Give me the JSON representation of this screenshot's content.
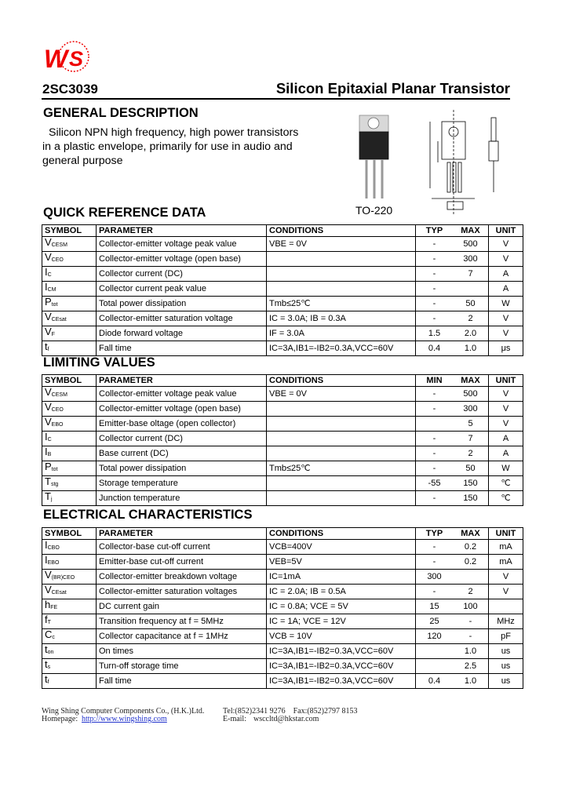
{
  "header": {
    "logo_text": "WS",
    "part_number": "2SC3039",
    "title": "Silicon Epitaxial Planar Transistor"
  },
  "general": {
    "heading": "GENERAL DESCRIPTION",
    "lines": [
      "Silicon NPN high frequency, high power transistors",
      "in a plastic envelope, primarily for use in audio and",
      "general purpose"
    ]
  },
  "package": {
    "label": "TO-220"
  },
  "colors": {
    "logo": "#ee0000"
  },
  "quick_ref": {
    "heading": "QUICK REFERENCE DATA",
    "columns": [
      "SYMBOL",
      "PARAMETER",
      "CONDITIONS",
      "TYP",
      "MAX",
      "UNIT"
    ],
    "rows": [
      [
        "V",
        "CESM",
        "Collector-emitter voltage peak value",
        "VBE = 0V",
        "-",
        "500",
        "V"
      ],
      [
        "V",
        "CEO",
        "Collector-emitter voltage (open base)",
        "",
        "-",
        "300",
        "V"
      ],
      [
        "I",
        "C",
        "Collector current (DC)",
        "",
        "-",
        "7",
        "A"
      ],
      [
        "I",
        "CM",
        "Collector current peak value",
        "",
        "-",
        "",
        "A"
      ],
      [
        "P",
        "tot",
        "Total power dissipation",
        "Tmb≤25℃",
        "-",
        "50",
        "W"
      ],
      [
        "V",
        "CEsat",
        "Collector-emitter saturation voltage",
        "IC = 3.0A; IB = 0.3A",
        "-",
        "2",
        "V"
      ],
      [
        "V",
        "F",
        "Diode forward voltage",
        "IF = 3.0A",
        "1.5",
        "2.0",
        "V"
      ],
      [
        "t",
        "f",
        "Fall time",
        "IC=3A,IB1=-IB2=0.3A,VCC=60V",
        "0.4",
        "1.0",
        "μs"
      ]
    ]
  },
  "limiting": {
    "heading": "LIMITING VALUES",
    "columns": [
      "SYMBOL",
      "PARAMETER",
      "CONDITIONS",
      "MIN",
      "MAX",
      "UNIT"
    ],
    "rows": [
      [
        "V",
        "CESM",
        "Collector-emitter voltage peak value",
        "VBE = 0V",
        "-",
        "500",
        "V"
      ],
      [
        "V",
        "CEO",
        "Collector-emitter voltage (open base)",
        "",
        "-",
        "300",
        "V"
      ],
      [
        "V",
        "EBO",
        "Emitter-base oltage (open collector)",
        "",
        "",
        "5",
        "V"
      ],
      [
        "I",
        "C",
        "Collector current (DC)",
        "",
        "-",
        "7",
        "A"
      ],
      [
        "I",
        "B",
        "Base current (DC)",
        "",
        "-",
        "2",
        "A"
      ],
      [
        "P",
        "tot",
        "Total power dissipation",
        "Tmb≤25℃",
        "-",
        "50",
        "W"
      ],
      [
        "T",
        "stg",
        "Storage temperature",
        "",
        "-55",
        "150",
        "℃"
      ],
      [
        "T",
        "j",
        "Junction temperature",
        "",
        "-",
        "150",
        "℃"
      ]
    ]
  },
  "electrical": {
    "heading": "ELECTRICAL CHARACTERISTICS",
    "columns": [
      "SYMBOL",
      "PARAMETER",
      "CONDITIONS",
      "TYP",
      "MAX",
      "UNIT"
    ],
    "rows": [
      [
        "I",
        "CBO",
        "Collector-base cut-off current",
        "VCB=400V",
        "-",
        "0.2",
        "mA"
      ],
      [
        "I",
        "EBO",
        "Emitter-base cut-off current",
        "VEB=5V",
        "-",
        "0.2",
        "mA"
      ],
      [
        "V",
        "(BR)CEO",
        "Collector-emitter breakdown voltage",
        "IC=1mA",
        "300",
        "",
        "V"
      ],
      [
        "V",
        "CEsat",
        "Collector-emitter saturation voltages",
        "IC = 2.0A; IB = 0.5A",
        "-",
        "2",
        "V"
      ],
      [
        "h",
        "FE",
        "DC current gain",
        "IC = 0.8A; VCE = 5V",
        "15",
        "100",
        ""
      ],
      [
        "f",
        "T",
        "Transition frequency at  f = 5MHz",
        "IC = 1A; VCE = 12V",
        "25",
        "-",
        "MHz"
      ],
      [
        "C",
        "c",
        "Collector capacitance at  f = 1MHz",
        "VCB = 10V",
        "120",
        "-",
        "pF"
      ],
      [
        "t",
        "on",
        "On times",
        "IC=3A,IB1=-IB2=0.3A,VCC=60V",
        "",
        "1.0",
        "us"
      ],
      [
        "t",
        "s",
        "Turn-off storage time",
        "IC=3A,IB1=-IB2=0.3A,VCC=60V",
        "",
        "2.5",
        "us"
      ],
      [
        "t",
        "f",
        "Fall time",
        "IC=3A,IB1=-IB2=0.3A,VCC=60V",
        "0.4",
        "1.0",
        "us"
      ]
    ]
  },
  "footer": {
    "company": "Wing Shing Computer Components Co., (H.K.)Ltd.",
    "homepage_label": "Homepage:",
    "homepage_url": "http://www.wingshing.com",
    "tel_fax": "Tel:(852)2341 9276    Fax:(852)2797 8153",
    "email_label": "E-mail:",
    "email": "wsccltd@hkstar.com"
  }
}
